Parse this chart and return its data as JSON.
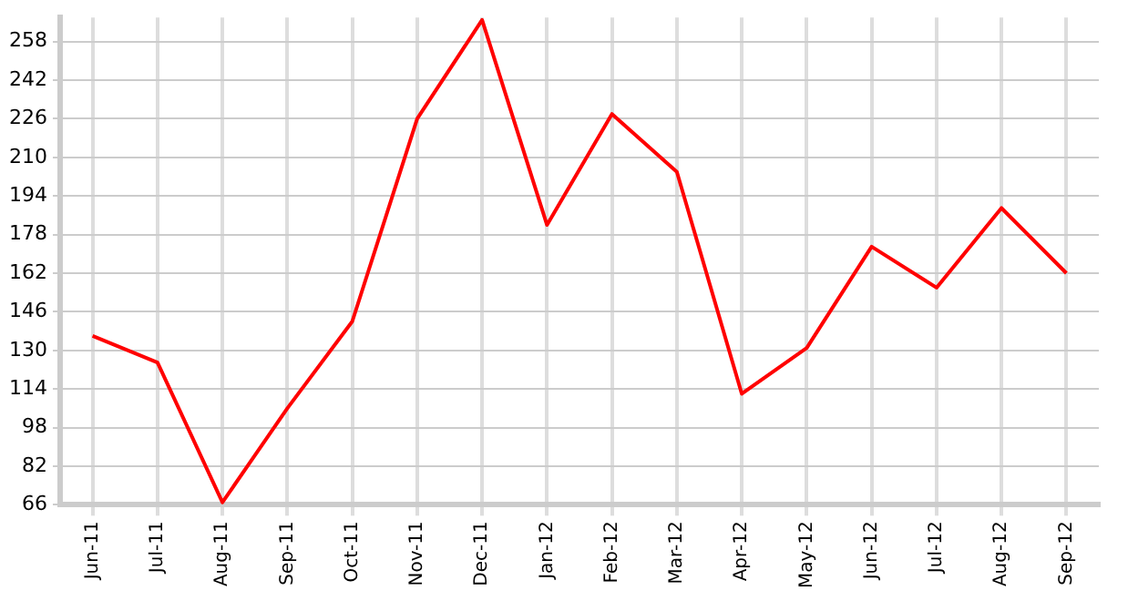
{
  "chart_data": {
    "type": "line",
    "categories": [
      "Jun-11",
      "Jul-11",
      "Aug-11",
      "Sep-11",
      "Oct-11",
      "Nov-11",
      "Dec-11",
      "Jan-12",
      "Feb-12",
      "Mar-12",
      "Apr-12",
      "May-12",
      "Jun-12",
      "Jul-12",
      "Aug-12",
      "Sep-12"
    ],
    "series": [
      {
        "color": "#ff0000",
        "values": [
          136,
          125,
          67,
          106,
          142,
          226,
          267,
          182,
          228,
          204,
          112,
          131,
          173,
          156,
          189,
          162
        ]
      }
    ],
    "ylim": [
      66,
      268
    ],
    "yticks": [
      66,
      82,
      98,
      114,
      130,
      146,
      162,
      178,
      194,
      210,
      226,
      242,
      258
    ],
    "grid": true,
    "legend": false,
    "marker": "none",
    "line_style": "solid"
  }
}
